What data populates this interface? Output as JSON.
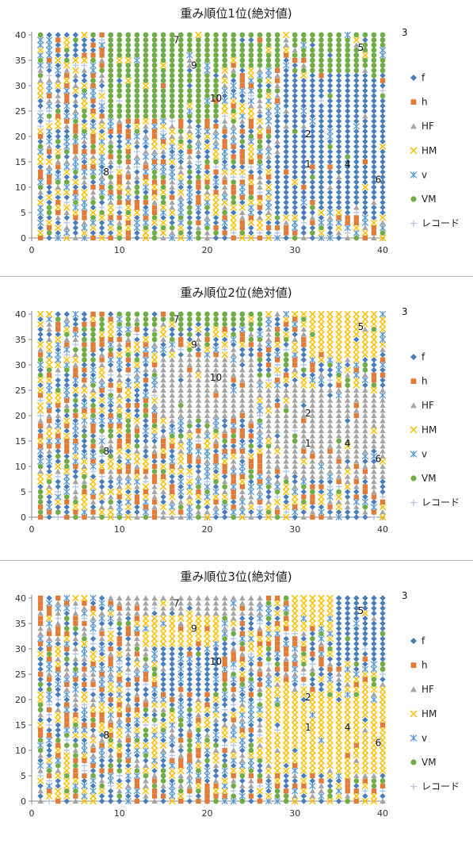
{
  "chart_data": [
    {
      "type": "scatter",
      "title": "重み順位1位(絶対値)",
      "xlim": [
        0,
        40
      ],
      "ylim": [
        0,
        40
      ],
      "xticks": [
        "0",
        "10",
        "20",
        "30",
        "40"
      ],
      "yticks": [
        "0",
        "5",
        "10",
        "15",
        "20",
        "25",
        "30",
        "35",
        "40"
      ],
      "grid": false,
      "legend_position": "right",
      "series": [
        {
          "name": "f",
          "color": "#4a7ebb",
          "marker": "diamond"
        },
        {
          "name": "h",
          "color": "#e07b39",
          "marker": "square"
        },
        {
          "name": "HF",
          "color": "#a5a5a5",
          "marker": "triangle"
        },
        {
          "name": "HM",
          "color": "#ffc000",
          "marker": "x"
        },
        {
          "name": "v",
          "color": "#5b9bd5",
          "marker": "star"
        },
        {
          "name": "VM",
          "color": "#70ad47",
          "marker": "circle"
        },
        {
          "name": "レコード",
          "color": "#b4c7e7",
          "marker": "plus"
        }
      ],
      "regions": [
        {
          "series": "VM",
          "x": [
            9,
            21
          ],
          "y": [
            24,
            40
          ]
        },
        {
          "series": "VM",
          "x": [
            21,
            28
          ],
          "y": [
            34,
            40
          ]
        },
        {
          "series": "VM",
          "x": [
            30,
            40
          ],
          "y": [
            33,
            40
          ]
        },
        {
          "series": "f",
          "x": [
            28,
            40
          ],
          "y": [
            5,
            24
          ]
        },
        {
          "series": "f",
          "x": [
            29,
            40
          ],
          "y": [
            24,
            33
          ]
        }
      ],
      "annotations": [
        {
          "text": "1",
          "x": 31.5,
          "y": 14.5
        },
        {
          "text": "2",
          "x": 31.5,
          "y": 20.5
        },
        {
          "text": "3",
          "x": 42.5,
          "y": 40.5
        },
        {
          "text": "4",
          "x": 36,
          "y": 14.5
        },
        {
          "text": "5",
          "x": 37.5,
          "y": 37.5
        },
        {
          "text": "6",
          "x": 39.5,
          "y": 11.5
        },
        {
          "text": "7",
          "x": 16.5,
          "y": 39
        },
        {
          "text": "8",
          "x": 8.5,
          "y": 13
        },
        {
          "text": "9",
          "x": 18.5,
          "y": 34
        },
        {
          "text": "10",
          "x": 21,
          "y": 27.5
        }
      ]
    },
    {
      "type": "scatter",
      "title": "重み順位2位(絶対値)",
      "xlim": [
        0,
        40
      ],
      "ylim": [
        0,
        40
      ],
      "xticks": [
        "0",
        "10",
        "20",
        "30",
        "40"
      ],
      "yticks": [
        "0",
        "5",
        "10",
        "15",
        "20",
        "25",
        "30",
        "35",
        "40"
      ],
      "grid": false,
      "legend_position": "right",
      "series": [
        {
          "name": "f",
          "color": "#4a7ebb",
          "marker": "diamond"
        },
        {
          "name": "h",
          "color": "#e07b39",
          "marker": "square"
        },
        {
          "name": "HF",
          "color": "#a5a5a5",
          "marker": "triangle"
        },
        {
          "name": "HM",
          "color": "#ffc000",
          "marker": "x"
        },
        {
          "name": "v",
          "color": "#5b9bd5",
          "marker": "star"
        },
        {
          "name": "VM",
          "color": "#70ad47",
          "marker": "circle"
        },
        {
          "name": "レコード",
          "color": "#b4c7e7",
          "marker": "plus"
        }
      ],
      "regions": [
        {
          "series": "VM",
          "x": [
            10,
            26
          ],
          "y": [
            38,
            40
          ]
        },
        {
          "series": "HF",
          "x": [
            15,
            25
          ],
          "y": [
            20,
            31
          ]
        },
        {
          "series": "HF",
          "x": [
            27,
            41
          ],
          "y": [
            8,
            25
          ]
        },
        {
          "series": "HM",
          "x": [
            32,
            41
          ],
          "y": [
            32,
            40
          ]
        }
      ],
      "annotations": [
        {
          "text": "1",
          "x": 31.5,
          "y": 14.5
        },
        {
          "text": "2",
          "x": 31.5,
          "y": 20.5
        },
        {
          "text": "3",
          "x": 42.5,
          "y": 40.5
        },
        {
          "text": "4",
          "x": 36,
          "y": 14.5
        },
        {
          "text": "5",
          "x": 37.5,
          "y": 37.5
        },
        {
          "text": "6",
          "x": 39.5,
          "y": 11.5
        },
        {
          "text": "7",
          "x": 16.5,
          "y": 39
        },
        {
          "text": "8",
          "x": 8.5,
          "y": 13
        },
        {
          "text": "9",
          "x": 18.5,
          "y": 34
        },
        {
          "text": "10",
          "x": 21,
          "y": 27.5
        }
      ]
    },
    {
      "type": "scatter",
      "title": "重み順位3位(絶対値)",
      "xlim": [
        0,
        40
      ],
      "ylim": [
        0,
        40
      ],
      "xticks": [
        "0",
        "10",
        "20",
        "30",
        "40"
      ],
      "yticks": [
        "0",
        "5",
        "10",
        "15",
        "20",
        "25",
        "30",
        "35",
        "40"
      ],
      "grid": false,
      "legend_position": "right",
      "series": [
        {
          "name": "f",
          "color": "#4a7ebb",
          "marker": "diamond"
        },
        {
          "name": "h",
          "color": "#e07b39",
          "marker": "square"
        },
        {
          "name": "HF",
          "color": "#a5a5a5",
          "marker": "triangle"
        },
        {
          "name": "HM",
          "color": "#ffc000",
          "marker": "x"
        },
        {
          "name": "v",
          "color": "#5b9bd5",
          "marker": "star"
        },
        {
          "name": "VM",
          "color": "#70ad47",
          "marker": "circle"
        },
        {
          "name": "レコード",
          "color": "#b4c7e7",
          "marker": "plus"
        }
      ],
      "regions": [
        {
          "series": "HF",
          "x": [
            10,
            26
          ],
          "y": [
            37,
            40
          ]
        },
        {
          "series": "HM",
          "x": [
            13,
            21
          ],
          "y": [
            31,
            37
          ]
        },
        {
          "series": "f",
          "x": [
            15,
            21
          ],
          "y": [
            22,
            31
          ]
        },
        {
          "series": "f",
          "x": [
            35,
            41
          ],
          "y": [
            28,
            40
          ]
        },
        {
          "series": "HM",
          "x": [
            27,
            40
          ],
          "y": [
            6,
            22
          ]
        },
        {
          "series": "HM",
          "x": [
            30,
            34
          ],
          "y": [
            34,
            40
          ]
        }
      ],
      "annotations": [
        {
          "text": "1",
          "x": 31.5,
          "y": 14.5
        },
        {
          "text": "2",
          "x": 31.5,
          "y": 20.5
        },
        {
          "text": "3",
          "x": 42.5,
          "y": 40.5
        },
        {
          "text": "4",
          "x": 36,
          "y": 14.5
        },
        {
          "text": "5",
          "x": 37.5,
          "y": 37.5
        },
        {
          "text": "6",
          "x": 39.5,
          "y": 11.5
        },
        {
          "text": "7",
          "x": 16.5,
          "y": 39
        },
        {
          "text": "8",
          "x": 8.5,
          "y": 13
        },
        {
          "text": "9",
          "x": 18.5,
          "y": 34
        },
        {
          "text": "10",
          "x": 21,
          "y": 27.5
        }
      ]
    }
  ]
}
